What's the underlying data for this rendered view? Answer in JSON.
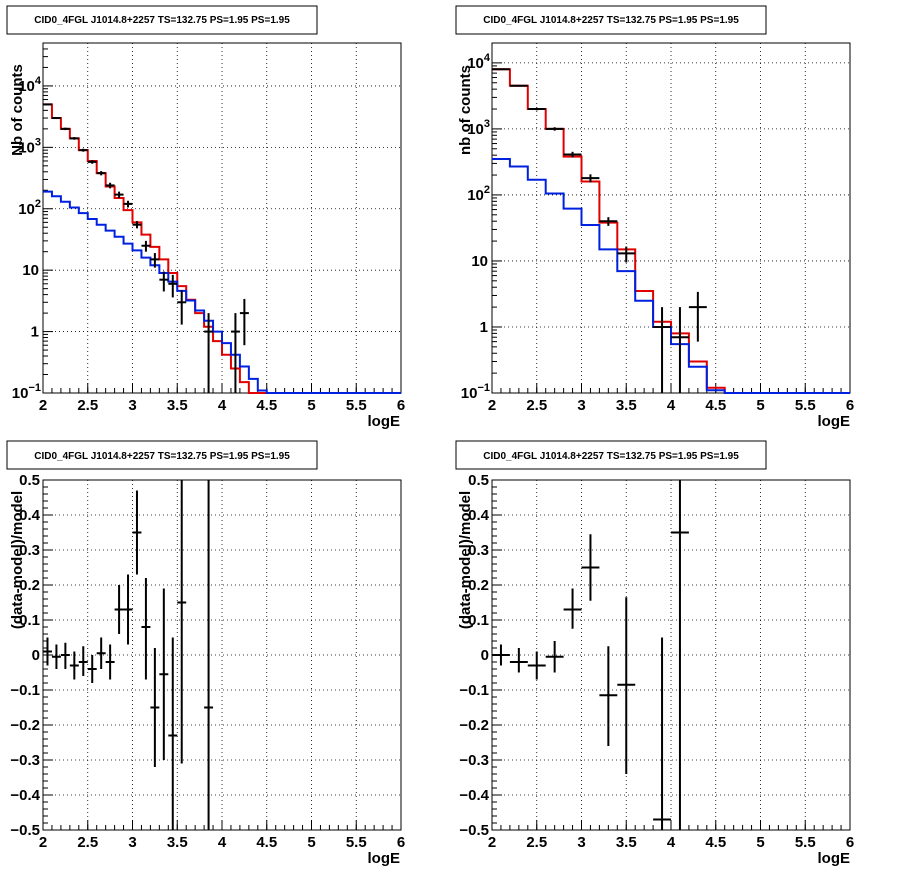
{
  "colors": {
    "data": "#000000",
    "model_total": "#e00000",
    "model_component": "#0020e0",
    "grid": "#000000"
  },
  "chart_data": [
    {
      "type": "step",
      "title": "CID0_4FGL J1014.8+2257 TS=132.75 PS=1.95 PS=1.95",
      "xlabel": "logE",
      "ylabel": "Nb of counts",
      "xlim": [
        2,
        6
      ],
      "ylim": [
        0.1,
        50000
      ],
      "yscale": "log",
      "grid": true,
      "xticks": [
        "2",
        "2.5",
        "3",
        "3.5",
        "4",
        "4.5",
        "5",
        "5.5",
        "6"
      ],
      "yticks": [
        {
          "value": 0.1,
          "base": "10",
          "exp": "−1"
        },
        {
          "value": 1,
          "base": "1",
          "exp": ""
        },
        {
          "value": 10,
          "base": "10",
          "exp": ""
        },
        {
          "value": 100,
          "base": "10",
          "exp": "2"
        },
        {
          "value": 1000,
          "base": "10",
          "exp": "3"
        },
        {
          "value": 10000,
          "base": "10",
          "exp": "4"
        }
      ],
      "bin_edges": [
        2,
        2.1,
        2.2,
        2.3,
        2.4,
        2.5,
        2.6,
        2.7,
        2.8,
        2.9,
        3.0,
        3.1,
        3.2,
        3.3,
        3.4,
        3.5,
        3.6,
        3.7,
        3.8,
        3.9,
        4.0,
        4.1,
        4.2,
        4.3,
        4.4,
        4.5,
        4.6,
        4.7,
        4.8,
        4.9,
        5.0,
        5.1,
        5.2,
        5.3,
        5.4,
        5.5,
        5.6,
        5.7,
        5.8,
        5.9,
        6.0
      ],
      "series": [
        {
          "role": "model_total",
          "values": [
            5000,
            3000,
            2000,
            1400,
            900,
            600,
            380,
            230,
            150,
            95,
            60,
            38,
            24,
            15,
            9,
            5.5,
            3.3,
            2.0,
            1.2,
            0.7,
            0.42,
            0.25,
            0.15,
            0.1,
            0.1,
            0.1,
            0.1,
            0.1,
            0.1,
            0.1,
            0.1,
            0.1,
            0.1,
            0.1,
            0.1,
            0.1,
            0.1,
            0.1,
            0.1,
            0.1
          ]
        },
        {
          "role": "model_component",
          "values": [
            190,
            160,
            130,
            105,
            85,
            68,
            55,
            44,
            35,
            27,
            21,
            16,
            12,
            9,
            6.5,
            4.6,
            3.2,
            2.2,
            1.5,
            1.0,
            0.65,
            0.42,
            0.27,
            0.17,
            0.11,
            0.1,
            0.1,
            0.1,
            0.1,
            0.1,
            0.1,
            0.1,
            0.1,
            0.1,
            0.1,
            0.1,
            0.1,
            0.1,
            0.1,
            0.1
          ]
        }
      ],
      "points": [
        {
          "x": 2.05,
          "y": 5000,
          "lo": 4850,
          "hi": 5150
        },
        {
          "x": 2.15,
          "y": 3000,
          "lo": 2890,
          "hi": 3110
        },
        {
          "x": 2.25,
          "y": 2000,
          "lo": 1910,
          "hi": 2090
        },
        {
          "x": 2.35,
          "y": 1400,
          "lo": 1330,
          "hi": 1470
        },
        {
          "x": 2.45,
          "y": 900,
          "lo": 850,
          "hi": 950
        },
        {
          "x": 2.55,
          "y": 580,
          "lo": 540,
          "hi": 620
        },
        {
          "x": 2.65,
          "y": 380,
          "lo": 350,
          "hi": 410
        },
        {
          "x": 2.75,
          "y": 240,
          "lo": 215,
          "hi": 265
        },
        {
          "x": 2.85,
          "y": 170,
          "lo": 150,
          "hi": 190
        },
        {
          "x": 2.95,
          "y": 120,
          "lo": 105,
          "hi": 135
        },
        {
          "x": 3.05,
          "y": 55,
          "lo": 48,
          "hi": 63
        },
        {
          "x": 3.15,
          "y": 25,
          "lo": 20,
          "hi": 30
        },
        {
          "x": 3.25,
          "y": 15,
          "lo": 11,
          "hi": 19
        },
        {
          "x": 3.35,
          "y": 7,
          "lo": 4.5,
          "hi": 9.5
        },
        {
          "x": 3.45,
          "y": 6,
          "lo": 3.6,
          "hi": 8.4
        },
        {
          "x": 3.55,
          "y": 3,
          "lo": 1.3,
          "hi": 4.7
        },
        {
          "x": 3.85,
          "y": 1,
          "lo": 0.1,
          "hi": 2
        },
        {
          "x": 4.15,
          "y": 1,
          "lo": 0.1,
          "hi": 2
        },
        {
          "x": 4.25,
          "y": 2,
          "lo": 0.6,
          "hi": 3.4
        }
      ]
    },
    {
      "type": "step",
      "title": "CID0_4FGL J1014.8+2257 TS=132.75 PS=1.95 PS=1.95",
      "xlabel": "logE",
      "ylabel": "nb of counts",
      "xlim": [
        2,
        6
      ],
      "ylim": [
        0.1,
        20000
      ],
      "yscale": "log",
      "grid": true,
      "xticks": [
        "2",
        "2.5",
        "3",
        "3.5",
        "4",
        "4.5",
        "5",
        "5.5",
        "6"
      ],
      "yticks": [
        {
          "value": 0.1,
          "base": "10",
          "exp": "−1"
        },
        {
          "value": 1,
          "base": "1",
          "exp": ""
        },
        {
          "value": 10,
          "base": "10",
          "exp": ""
        },
        {
          "value": 100,
          "base": "10",
          "exp": "2"
        },
        {
          "value": 1000,
          "base": "10",
          "exp": "3"
        },
        {
          "value": 10000,
          "base": "10",
          "exp": "4"
        }
      ],
      "bin_edges": [
        2,
        2.2,
        2.4,
        2.6,
        2.8,
        3.0,
        3.2,
        3.4,
        3.6,
        3.8,
        4.0,
        4.2,
        4.4,
        4.6,
        4.8,
        5.0,
        5.2,
        5.4,
        5.6,
        5.8,
        6.0
      ],
      "series": [
        {
          "role": "model_total",
          "values": [
            8000,
            4500,
            2000,
            1000,
            380,
            160,
            38,
            15,
            3.5,
            1.2,
            0.8,
            0.3,
            0.12,
            0.1,
            0.1,
            0.1,
            0.1,
            0.1,
            0.1,
            0.1
          ]
        },
        {
          "role": "model_component",
          "values": [
            350,
            270,
            170,
            105,
            62,
            35,
            15,
            7,
            2.5,
            1.0,
            0.55,
            0.25,
            0.11,
            0.1,
            0.1,
            0.1,
            0.1,
            0.1,
            0.1,
            0.1
          ]
        }
      ],
      "points": [
        {
          "x": 2.1,
          "y": 8000,
          "lo": 7820,
          "hi": 8180
        },
        {
          "x": 2.3,
          "y": 4500,
          "lo": 4370,
          "hi": 4630
        },
        {
          "x": 2.5,
          "y": 2000,
          "lo": 1910,
          "hi": 2090
        },
        {
          "x": 2.7,
          "y": 1000,
          "lo": 940,
          "hi": 1060
        },
        {
          "x": 2.9,
          "y": 410,
          "lo": 370,
          "hi": 450
        },
        {
          "x": 3.1,
          "y": 180,
          "lo": 155,
          "hi": 205
        },
        {
          "x": 3.3,
          "y": 40,
          "lo": 34,
          "hi": 46
        },
        {
          "x": 3.5,
          "y": 13,
          "lo": 9.5,
          "hi": 16.5
        },
        {
          "x": 3.9,
          "y": 1,
          "lo": 0.1,
          "hi": 2
        },
        {
          "x": 4.1,
          "y": 0.7,
          "lo": 0.1,
          "hi": 2
        },
        {
          "x": 4.3,
          "y": 2,
          "lo": 0.6,
          "hi": 3.4
        }
      ]
    },
    {
      "type": "scatter",
      "title": "CID0_4FGL J1014.8+2257 TS=132.75 PS=1.95 PS=1.95",
      "xlabel": "logE",
      "ylabel": "(data-model)/model",
      "xlim": [
        2,
        6
      ],
      "ylim": [
        -0.5,
        0.5
      ],
      "grid": true,
      "xticks": [
        "2",
        "2.5",
        "3",
        "3.5",
        "4",
        "4.5",
        "5",
        "5.5",
        "6"
      ],
      "yticks": [
        "−0.5",
        "−0.4",
        "−0.3",
        "−0.2",
        "−0.1",
        "0",
        "0.1",
        "0.2",
        "0.3",
        "0.4",
        "0.5"
      ],
      "xerr": 0.05,
      "points": [
        {
          "x": 2.05,
          "y": 0.01,
          "lo": -0.03,
          "hi": 0.05
        },
        {
          "x": 2.15,
          "y": -0.005,
          "lo": -0.04,
          "hi": 0.03
        },
        {
          "x": 2.25,
          "y": 0.0,
          "lo": -0.04,
          "hi": 0.035
        },
        {
          "x": 2.35,
          "y": -0.03,
          "lo": -0.07,
          "hi": 0.01
        },
        {
          "x": 2.45,
          "y": -0.02,
          "lo": -0.06,
          "hi": 0.025
        },
        {
          "x": 2.55,
          "y": -0.04,
          "lo": -0.08,
          "hi": 0.0
        },
        {
          "x": 2.65,
          "y": 0.005,
          "lo": -0.04,
          "hi": 0.05
        },
        {
          "x": 2.75,
          "y": -0.02,
          "lo": -0.07,
          "hi": 0.03
        },
        {
          "x": 2.85,
          "y": 0.13,
          "lo": 0.06,
          "hi": 0.2
        },
        {
          "x": 2.95,
          "y": 0.13,
          "lo": 0.03,
          "hi": 0.23
        },
        {
          "x": 3.05,
          "y": 0.35,
          "lo": 0.23,
          "hi": 0.47
        },
        {
          "x": 3.15,
          "y": 0.08,
          "lo": -0.07,
          "hi": 0.22
        },
        {
          "x": 3.25,
          "y": -0.15,
          "lo": -0.32,
          "hi": 0.02
        },
        {
          "x": 3.35,
          "y": -0.055,
          "lo": -0.3,
          "hi": 0.19
        },
        {
          "x": 3.45,
          "y": -0.23,
          "lo": -0.5,
          "hi": 0.05
        },
        {
          "x": 3.55,
          "y": 0.15,
          "lo": -0.31,
          "hi": 0.5
        },
        {
          "x": 3.85,
          "y": -0.15,
          "lo": -0.5,
          "hi": 0.5
        }
      ]
    },
    {
      "type": "scatter",
      "title": "CID0_4FGL J1014.8+2257 TS=132.75 PS=1.95 PS=1.95",
      "xlabel": "logE",
      "ylabel": "(data-model)/model",
      "xlim": [
        2,
        6
      ],
      "ylim": [
        -0.5,
        0.5
      ],
      "grid": true,
      "xticks": [
        "2",
        "2.5",
        "3",
        "3.5",
        "4",
        "4.5",
        "5",
        "5.5",
        "6"
      ],
      "yticks": [
        "−0.5",
        "−0.4",
        "−0.3",
        "−0.2",
        "−0.1",
        "0",
        "0.1",
        "0.2",
        "0.3",
        "0.4",
        "0.5"
      ],
      "xerr": 0.1,
      "points": [
        {
          "x": 2.1,
          "y": 0.0,
          "lo": -0.03,
          "hi": 0.03
        },
        {
          "x": 2.3,
          "y": -0.02,
          "lo": -0.05,
          "hi": 0.02
        },
        {
          "x": 2.5,
          "y": -0.03,
          "lo": -0.07,
          "hi": 0.01
        },
        {
          "x": 2.7,
          "y": -0.005,
          "lo": -0.05,
          "hi": 0.04
        },
        {
          "x": 2.9,
          "y": 0.13,
          "lo": 0.075,
          "hi": 0.19
        },
        {
          "x": 3.1,
          "y": 0.25,
          "lo": 0.155,
          "hi": 0.345
        },
        {
          "x": 3.3,
          "y": -0.115,
          "lo": -0.26,
          "hi": 0.025
        },
        {
          "x": 3.5,
          "y": -0.085,
          "lo": -0.34,
          "hi": 0.165
        },
        {
          "x": 3.9,
          "y": -0.47,
          "lo": -0.5,
          "hi": 0.05
        },
        {
          "x": 4.1,
          "y": 0.35,
          "lo": -0.5,
          "hi": 0.5
        }
      ]
    }
  ]
}
